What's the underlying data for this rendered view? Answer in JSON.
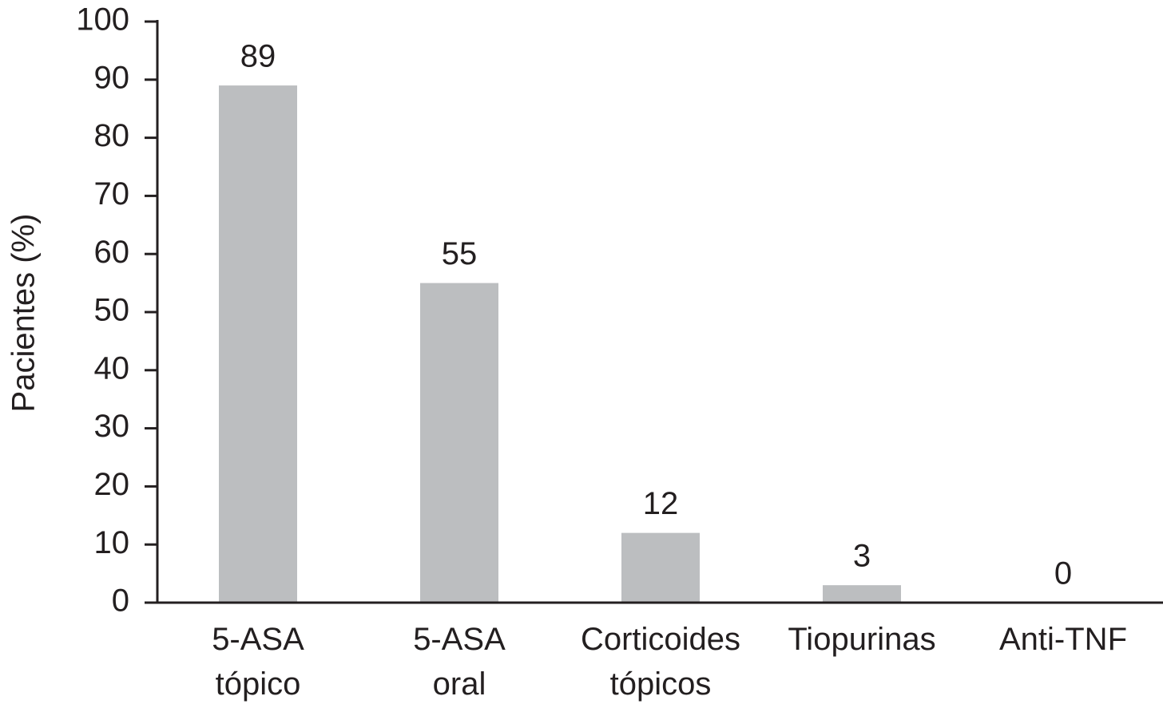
{
  "chart_data": {
    "type": "bar",
    "y_label": "Pacientes (%)",
    "categories": [
      "5-ASA tópico",
      "5-ASA oral",
      "Corticoides tópicos",
      "Tiopurinas",
      "Anti-TNF"
    ],
    "values": [
      89,
      55,
      12,
      3,
      0
    ],
    "color": "#bcbec0",
    "ylim": [
      0,
      100
    ],
    "yticks": [
      0,
      10,
      20,
      30,
      40,
      50,
      60,
      70,
      80,
      90,
      100
    ],
    "grid": false
  }
}
